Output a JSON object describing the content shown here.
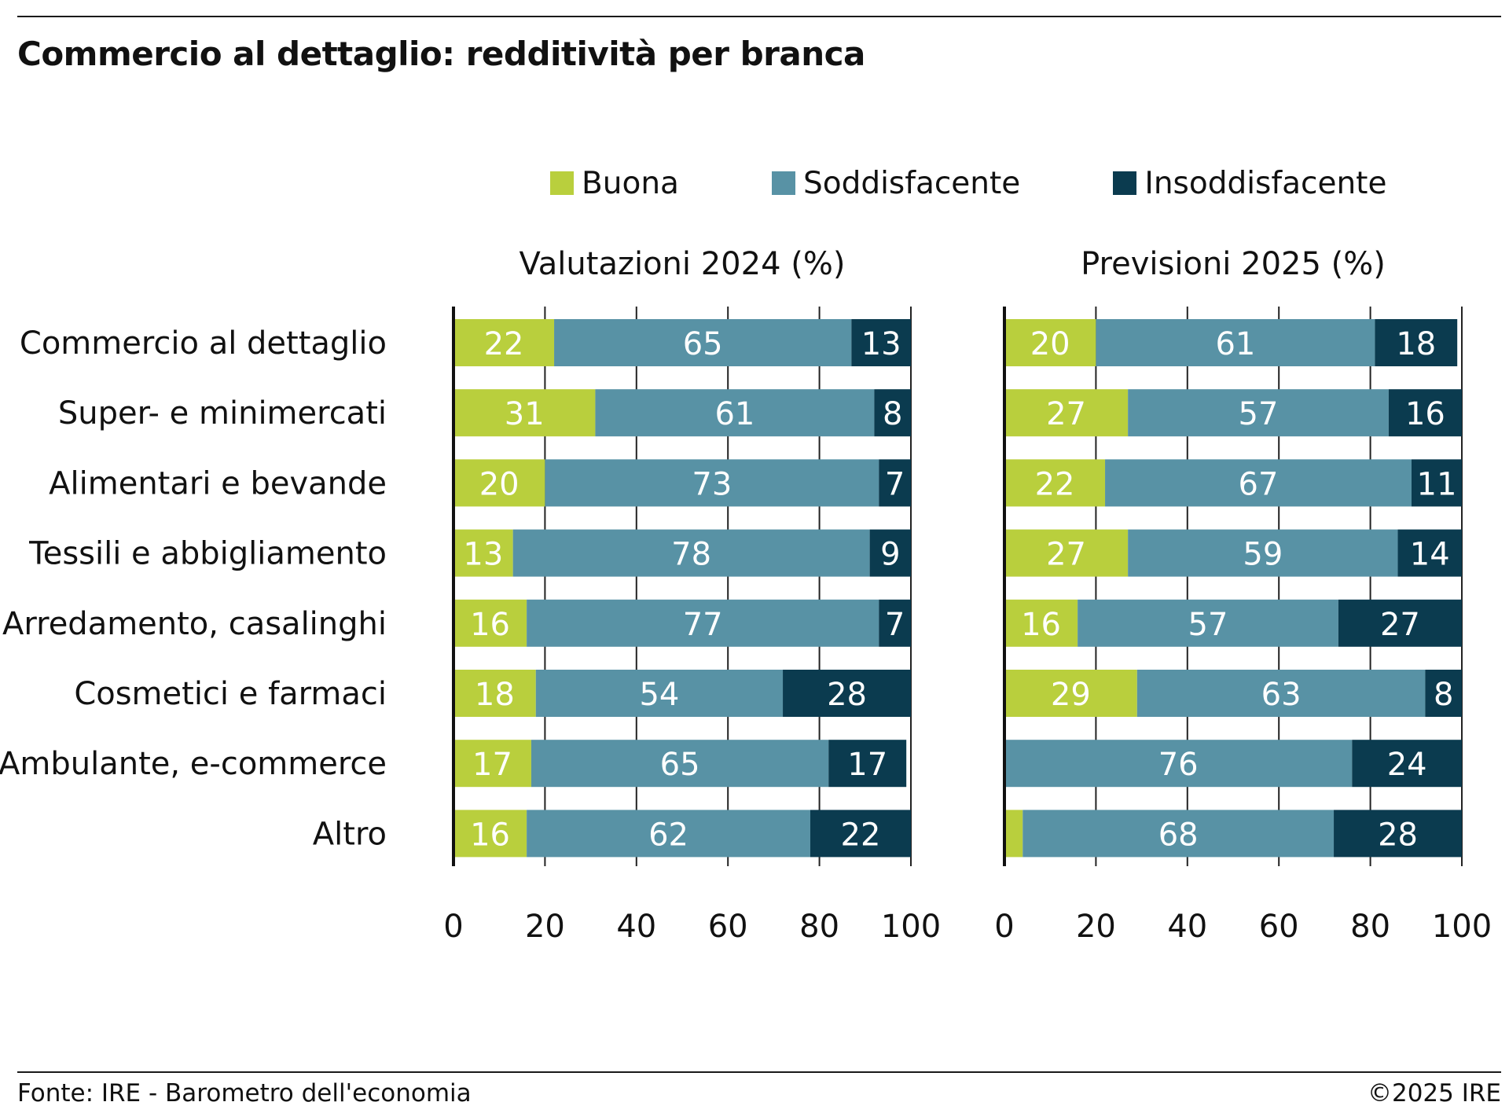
{
  "title": "Commercio al dettaglio: redditività per branca",
  "source": "Fonte: IRE - Barometro dell'economia",
  "copyright": "©2025 IRE",
  "legend": [
    {
      "label": "Buona",
      "color": "#b9cf3d"
    },
    {
      "label": "Soddisfacente",
      "color": "#5892a5"
    },
    {
      "label": "Insoddisfacente",
      "color": "#0b3b4f"
    }
  ],
  "chart_data": [
    {
      "type": "bar",
      "stacked": true,
      "orientation": "horizontal",
      "title": "Valutazioni 2024 (%)",
      "categories": [
        "Commercio al dettaglio",
        "Super- e minimercati",
        "Alimentari e bevande",
        "Tessili e abbigliamento",
        "Arredamento, casalinghi",
        "Cosmetici e farmaci",
        "Ambulante, e-commerce",
        "Altro"
      ],
      "series": [
        {
          "name": "Buona",
          "values": [
            22,
            31,
            20,
            13,
            16,
            18,
            17,
            16
          ]
        },
        {
          "name": "Soddisfacente",
          "values": [
            65,
            61,
            73,
            78,
            77,
            54,
            65,
            62
          ]
        },
        {
          "name": "Insoddisfacente",
          "values": [
            13,
            8,
            7,
            9,
            7,
            28,
            17,
            22
          ]
        }
      ],
      "xlim": [
        0,
        100
      ],
      "xticks": [
        0,
        20,
        40,
        60,
        80,
        100
      ],
      "grid": "vertical"
    },
    {
      "type": "bar",
      "stacked": true,
      "orientation": "horizontal",
      "title": "Previsioni 2025 (%)",
      "categories": [
        "Commercio al dettaglio",
        "Super- e minimercati",
        "Alimentari e bevande",
        "Tessili e abbigliamento",
        "Arredamento, casalinghi",
        "Cosmetici e farmaci",
        "Ambulante, e-commerce",
        "Altro"
      ],
      "series": [
        {
          "name": "Buona",
          "values": [
            20,
            27,
            22,
            27,
            16,
            29,
            0,
            4
          ]
        },
        {
          "name": "Soddisfacente",
          "values": [
            61,
            57,
            67,
            59,
            57,
            63,
            76,
            68
          ]
        },
        {
          "name": "Insoddisfacente",
          "values": [
            18,
            16,
            11,
            14,
            27,
            8,
            24,
            28
          ]
        }
      ],
      "labels_shown": [
        [
          true,
          true,
          true
        ],
        [
          true,
          true,
          true
        ],
        [
          true,
          true,
          true
        ],
        [
          true,
          true,
          true
        ],
        [
          true,
          true,
          true
        ],
        [
          true,
          true,
          true
        ],
        [
          false,
          true,
          true
        ],
        [
          false,
          true,
          true
        ]
      ],
      "xlim": [
        0,
        100
      ],
      "xticks": [
        0,
        20,
        40,
        60,
        80,
        100
      ],
      "grid": "vertical"
    }
  ]
}
